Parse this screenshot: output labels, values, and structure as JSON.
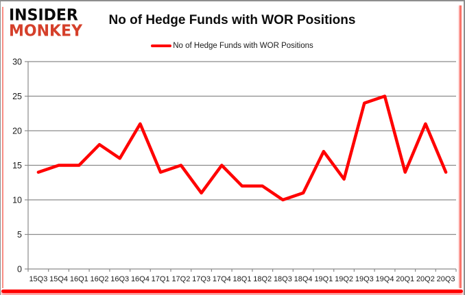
{
  "logo": {
    "line1": "INSIDER",
    "line2": "MONKEY",
    "color_primary": "#0A0A0A",
    "color_accent": "#D5402B"
  },
  "header": {
    "title": "No of Hedge Funds with WOR Positions"
  },
  "legend": {
    "label": "No of Hedge Funds with WOR Positions"
  },
  "chart_data": {
    "type": "line",
    "title": "No of Hedge Funds with WOR Positions",
    "categories": [
      "15Q3",
      "15Q4",
      "16Q1",
      "16Q2",
      "16Q3",
      "16Q4",
      "17Q1",
      "17Q2",
      "17Q3",
      "17Q4",
      "18Q1",
      "18Q2",
      "18Q3",
      "18Q4",
      "19Q1",
      "19Q2",
      "19Q3",
      "19Q4",
      "20Q1",
      "20Q2",
      "20Q3"
    ],
    "series": [
      {
        "name": "No of Hedge Funds with WOR Positions",
        "color": "#FF0000",
        "values": [
          14,
          15,
          15,
          18,
          16,
          21,
          14,
          15,
          11,
          15,
          12,
          12,
          10,
          11,
          17,
          13,
          24,
          25,
          14,
          21,
          14
        ]
      }
    ],
    "xlabel": "",
    "ylabel": "",
    "ylim": [
      0,
      30
    ],
    "ytick_step": 5,
    "grid": true,
    "legend_position": "top",
    "colors": {
      "gridline": "#8A8A8A",
      "axis_label": "#1A1A1A",
      "line": "#FF0000"
    }
  }
}
